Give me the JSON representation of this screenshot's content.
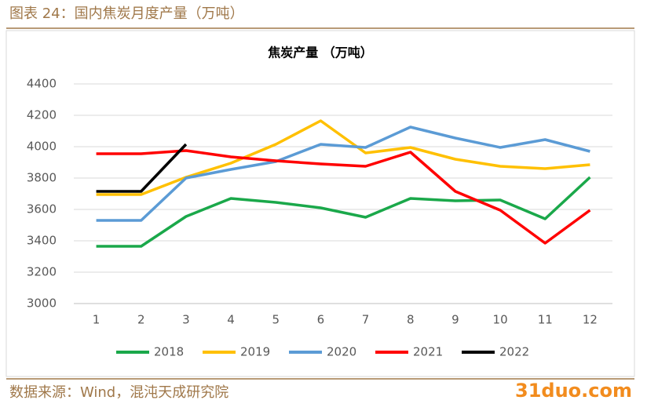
{
  "header": {
    "title": "图表 24：国内焦炭月度产量（万吨）"
  },
  "footer": {
    "source": "数据来源：Wind，混沌天成研究院",
    "watermark": "31duo.com"
  },
  "chart_data": {
    "type": "line",
    "title": "焦炭产量 （万吨）",
    "categories": [
      "1",
      "2",
      "3",
      "4",
      "5",
      "6",
      "7",
      "8",
      "9",
      "10",
      "11",
      "12"
    ],
    "series": [
      {
        "name": "2018",
        "color": "#1aa84a",
        "values": [
          3365,
          3365,
          3555,
          3670,
          3645,
          3610,
          3550,
          3670,
          3655,
          3660,
          3540,
          3805
        ]
      },
      {
        "name": "2019",
        "color": "#ffc000",
        "values": [
          3695,
          3695,
          3805,
          3895,
          4015,
          4165,
          3960,
          3995,
          3920,
          3875,
          3860,
          3885
        ]
      },
      {
        "name": "2020",
        "color": "#5b9bd5",
        "values": [
          3530,
          3530,
          3800,
          3855,
          3905,
          4015,
          3995,
          4125,
          4055,
          3995,
          4045,
          3970
        ]
      },
      {
        "name": "2021",
        "color": "#ff0000",
        "values": [
          3955,
          3955,
          3975,
          3935,
          3910,
          3890,
          3875,
          3965,
          3715,
          3595,
          3385,
          3595
        ]
      },
      {
        "name": "2022",
        "color": "#000000",
        "values": [
          3715,
          3715,
          4015,
          null,
          null,
          null,
          null,
          null,
          null,
          null,
          null,
          null
        ]
      }
    ],
    "ylim": [
      3000,
      4400
    ],
    "yticks": [
      3000,
      3200,
      3400,
      3600,
      3800,
      4000,
      4200,
      4400
    ],
    "grid": true
  }
}
